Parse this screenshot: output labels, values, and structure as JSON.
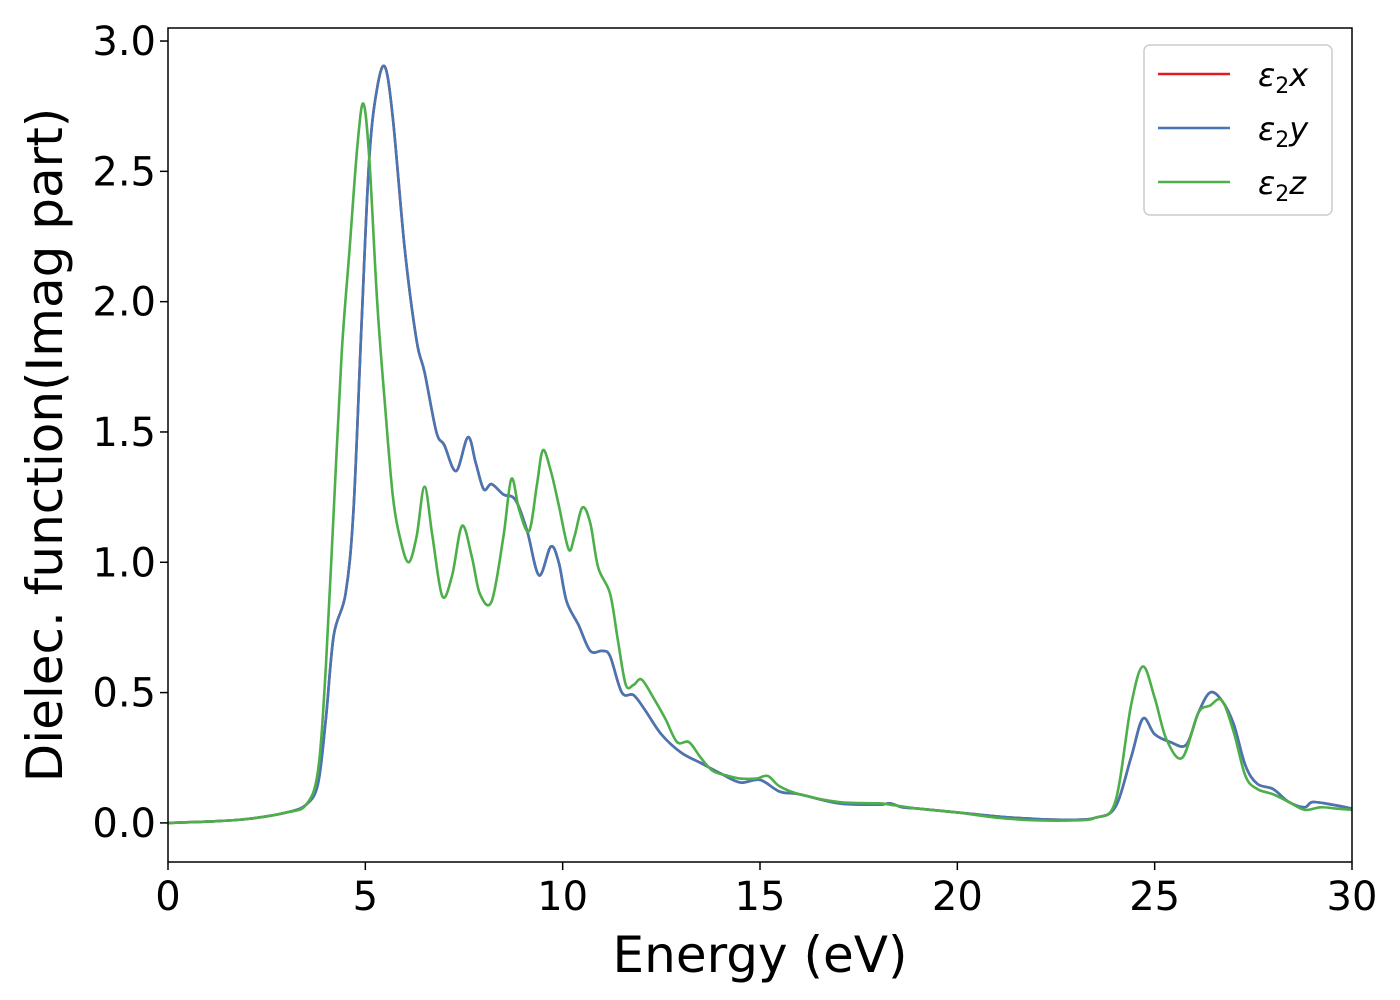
{
  "chart_data": {
    "type": "line",
    "xlabel": "Energy (eV)",
    "ylabel": "Dielec. function(Imag part)",
    "xlim": [
      0,
      30
    ],
    "ylim": [
      -0.15,
      3.05
    ],
    "xticks": [
      0,
      5,
      10,
      15,
      20,
      25,
      30
    ],
    "xtick_labels": [
      "0",
      "5",
      "10",
      "15",
      "20",
      "25",
      "30"
    ],
    "yticks": [
      0.0,
      0.5,
      1.0,
      1.5,
      2.0,
      2.5,
      3.0
    ],
    "ytick_labels": [
      "0.0",
      "0.5",
      "1.0",
      "1.5",
      "2.0",
      "2.5",
      "3.0"
    ],
    "grid": false,
    "legend_position": "top-right",
    "series": [
      {
        "name": "ε₂x",
        "legend_base": "ε",
        "legend_sub": "2",
        "legend_axis": "x",
        "color": "#e41a1c",
        "points": [
          [
            0,
            0
          ],
          [
            1,
            0.005
          ],
          [
            2,
            0.015
          ],
          [
            3,
            0.04
          ],
          [
            3.5,
            0.07
          ],
          [
            3.8,
            0.15
          ],
          [
            4.0,
            0.4
          ],
          [
            4.2,
            0.72
          ],
          [
            4.5,
            0.88
          ],
          [
            4.7,
            1.2
          ],
          [
            4.9,
            1.9
          ],
          [
            5.1,
            2.55
          ],
          [
            5.3,
            2.82
          ],
          [
            5.5,
            2.9
          ],
          [
            5.7,
            2.7
          ],
          [
            6.0,
            2.2
          ],
          [
            6.3,
            1.85
          ],
          [
            6.5,
            1.73
          ],
          [
            6.8,
            1.5
          ],
          [
            7.0,
            1.45
          ],
          [
            7.3,
            1.35
          ],
          [
            7.6,
            1.48
          ],
          [
            7.8,
            1.38
          ],
          [
            8.0,
            1.28
          ],
          [
            8.2,
            1.3
          ],
          [
            8.5,
            1.26
          ],
          [
            8.8,
            1.24
          ],
          [
            9.1,
            1.12
          ],
          [
            9.4,
            0.95
          ],
          [
            9.7,
            1.06
          ],
          [
            9.9,
            1.0
          ],
          [
            10.1,
            0.85
          ],
          [
            10.4,
            0.76
          ],
          [
            10.7,
            0.66
          ],
          [
            11.0,
            0.66
          ],
          [
            11.2,
            0.64
          ],
          [
            11.5,
            0.5
          ],
          [
            11.8,
            0.49
          ],
          [
            12.1,
            0.43
          ],
          [
            12.5,
            0.34
          ],
          [
            13.0,
            0.27
          ],
          [
            13.5,
            0.23
          ],
          [
            14.0,
            0.19
          ],
          [
            14.5,
            0.155
          ],
          [
            15.0,
            0.165
          ],
          [
            15.5,
            0.12
          ],
          [
            16,
            0.11
          ],
          [
            17,
            0.075
          ],
          [
            18,
            0.07
          ],
          [
            18.3,
            0.075
          ],
          [
            18.6,
            0.06
          ],
          [
            19,
            0.055
          ],
          [
            20,
            0.04
          ],
          [
            21,
            0.025
          ],
          [
            22,
            0.015
          ],
          [
            23,
            0.012
          ],
          [
            23.5,
            0.02
          ],
          [
            24.0,
            0.06
          ],
          [
            24.4,
            0.25
          ],
          [
            24.7,
            0.4
          ],
          [
            25.0,
            0.34
          ],
          [
            25.4,
            0.31
          ],
          [
            25.8,
            0.3
          ],
          [
            26.1,
            0.42
          ],
          [
            26.4,
            0.5
          ],
          [
            26.7,
            0.47
          ],
          [
            27.0,
            0.38
          ],
          [
            27.3,
            0.22
          ],
          [
            27.6,
            0.15
          ],
          [
            28.0,
            0.13
          ],
          [
            28.4,
            0.08
          ],
          [
            28.8,
            0.06
          ],
          [
            29.0,
            0.08
          ],
          [
            29.5,
            0.07
          ],
          [
            30,
            0.055
          ]
        ]
      },
      {
        "name": "ε₂y",
        "legend_base": "ε",
        "legend_sub": "2",
        "legend_axis": "y",
        "color": "#4776b4",
        "points": [
          [
            0,
            0
          ],
          [
            1,
            0.005
          ],
          [
            2,
            0.015
          ],
          [
            3,
            0.04
          ],
          [
            3.5,
            0.07
          ],
          [
            3.8,
            0.15
          ],
          [
            4.0,
            0.4
          ],
          [
            4.2,
            0.72
          ],
          [
            4.5,
            0.88
          ],
          [
            4.7,
            1.2
          ],
          [
            4.9,
            1.9
          ],
          [
            5.1,
            2.55
          ],
          [
            5.3,
            2.82
          ],
          [
            5.5,
            2.9
          ],
          [
            5.7,
            2.7
          ],
          [
            6.0,
            2.2
          ],
          [
            6.3,
            1.85
          ],
          [
            6.5,
            1.73
          ],
          [
            6.8,
            1.5
          ],
          [
            7.0,
            1.45
          ],
          [
            7.3,
            1.35
          ],
          [
            7.6,
            1.48
          ],
          [
            7.8,
            1.38
          ],
          [
            8.0,
            1.28
          ],
          [
            8.2,
            1.3
          ],
          [
            8.5,
            1.26
          ],
          [
            8.8,
            1.24
          ],
          [
            9.1,
            1.12
          ],
          [
            9.4,
            0.95
          ],
          [
            9.7,
            1.06
          ],
          [
            9.9,
            1.0
          ],
          [
            10.1,
            0.85
          ],
          [
            10.4,
            0.76
          ],
          [
            10.7,
            0.66
          ],
          [
            11.0,
            0.66
          ],
          [
            11.2,
            0.64
          ],
          [
            11.5,
            0.5
          ],
          [
            11.8,
            0.49
          ],
          [
            12.1,
            0.43
          ],
          [
            12.5,
            0.34
          ],
          [
            13.0,
            0.27
          ],
          [
            13.5,
            0.23
          ],
          [
            14.0,
            0.19
          ],
          [
            14.5,
            0.155
          ],
          [
            15.0,
            0.165
          ],
          [
            15.5,
            0.12
          ],
          [
            16,
            0.11
          ],
          [
            17,
            0.075
          ],
          [
            18,
            0.07
          ],
          [
            18.3,
            0.075
          ],
          [
            18.6,
            0.06
          ],
          [
            19,
            0.055
          ],
          [
            20,
            0.04
          ],
          [
            21,
            0.025
          ],
          [
            22,
            0.015
          ],
          [
            23,
            0.012
          ],
          [
            23.5,
            0.02
          ],
          [
            24.0,
            0.06
          ],
          [
            24.4,
            0.25
          ],
          [
            24.7,
            0.4
          ],
          [
            25.0,
            0.34
          ],
          [
            25.4,
            0.31
          ],
          [
            25.8,
            0.3
          ],
          [
            26.1,
            0.42
          ],
          [
            26.4,
            0.5
          ],
          [
            26.7,
            0.47
          ],
          [
            27.0,
            0.38
          ],
          [
            27.3,
            0.22
          ],
          [
            27.6,
            0.15
          ],
          [
            28.0,
            0.13
          ],
          [
            28.4,
            0.08
          ],
          [
            28.8,
            0.06
          ],
          [
            29.0,
            0.08
          ],
          [
            29.5,
            0.07
          ],
          [
            30,
            0.055
          ]
        ]
      },
      {
        "name": "ε₂z",
        "legend_base": "ε",
        "legend_sub": "2",
        "legend_axis": "z",
        "color": "#4daf4a",
        "points": [
          [
            0,
            0
          ],
          [
            1,
            0.005
          ],
          [
            2,
            0.015
          ],
          [
            3,
            0.04
          ],
          [
            3.5,
            0.07
          ],
          [
            3.8,
            0.2
          ],
          [
            4.0,
            0.6
          ],
          [
            4.2,
            1.2
          ],
          [
            4.4,
            1.8
          ],
          [
            4.6,
            2.2
          ],
          [
            4.8,
            2.6
          ],
          [
            4.95,
            2.76
          ],
          [
            5.1,
            2.55
          ],
          [
            5.3,
            2.0
          ],
          [
            5.5,
            1.6
          ],
          [
            5.7,
            1.25
          ],
          [
            5.9,
            1.08
          ],
          [
            6.1,
            1.0
          ],
          [
            6.3,
            1.1
          ],
          [
            6.5,
            1.29
          ],
          [
            6.7,
            1.1
          ],
          [
            6.95,
            0.87
          ],
          [
            7.2,
            0.95
          ],
          [
            7.45,
            1.14
          ],
          [
            7.7,
            1.02
          ],
          [
            7.9,
            0.88
          ],
          [
            8.2,
            0.85
          ],
          [
            8.5,
            1.1
          ],
          [
            8.7,
            1.32
          ],
          [
            8.9,
            1.2
          ],
          [
            9.15,
            1.12
          ],
          [
            9.35,
            1.3
          ],
          [
            9.5,
            1.43
          ],
          [
            9.7,
            1.35
          ],
          [
            9.9,
            1.22
          ],
          [
            10.15,
            1.05
          ],
          [
            10.3,
            1.1
          ],
          [
            10.5,
            1.21
          ],
          [
            10.7,
            1.15
          ],
          [
            10.9,
            0.98
          ],
          [
            11.2,
            0.88
          ],
          [
            11.4,
            0.7
          ],
          [
            11.6,
            0.53
          ],
          [
            11.8,
            0.53
          ],
          [
            12.0,
            0.55
          ],
          [
            12.3,
            0.48
          ],
          [
            12.6,
            0.4
          ],
          [
            12.9,
            0.31
          ],
          [
            13.2,
            0.31
          ],
          [
            13.5,
            0.25
          ],
          [
            13.8,
            0.2
          ],
          [
            14.2,
            0.18
          ],
          [
            14.5,
            0.17
          ],
          [
            14.9,
            0.17
          ],
          [
            15.2,
            0.18
          ],
          [
            15.5,
            0.14
          ],
          [
            16,
            0.11
          ],
          [
            17,
            0.08
          ],
          [
            18,
            0.075
          ],
          [
            18.3,
            0.07
          ],
          [
            19,
            0.055
          ],
          [
            20,
            0.04
          ],
          [
            21,
            0.02
          ],
          [
            22,
            0.01
          ],
          [
            23,
            0.01
          ],
          [
            23.5,
            0.02
          ],
          [
            24.0,
            0.08
          ],
          [
            24.4,
            0.45
          ],
          [
            24.7,
            0.6
          ],
          [
            25.0,
            0.48
          ],
          [
            25.3,
            0.32
          ],
          [
            25.7,
            0.25
          ],
          [
            26.1,
            0.42
          ],
          [
            26.4,
            0.45
          ],
          [
            26.7,
            0.47
          ],
          [
            27.0,
            0.35
          ],
          [
            27.3,
            0.18
          ],
          [
            27.6,
            0.13
          ],
          [
            28.0,
            0.11
          ],
          [
            28.4,
            0.08
          ],
          [
            28.8,
            0.05
          ],
          [
            29.2,
            0.06
          ],
          [
            29.6,
            0.055
          ],
          [
            30,
            0.05
          ]
        ]
      }
    ]
  }
}
